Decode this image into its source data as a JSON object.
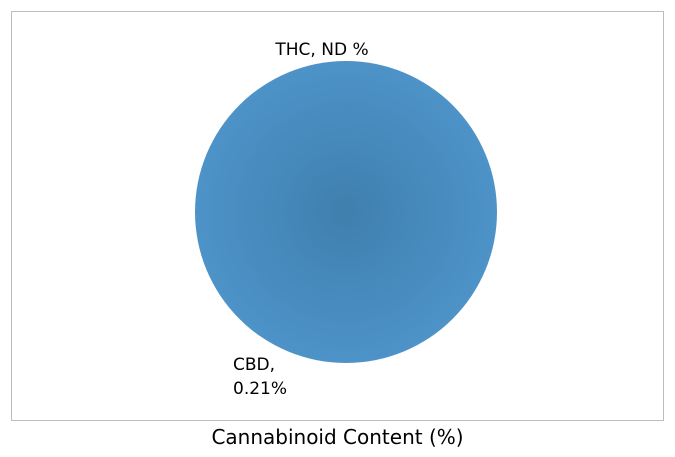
{
  "chart_data": {
    "type": "pie",
    "categories": [
      "THC",
      "CBD"
    ],
    "values": [
      0,
      0.21
    ],
    "value_unit": "%",
    "data_labels": [
      "THC, ND %",
      "CBD,\n0.21%"
    ],
    "colors": {
      "slice": "#4a8fc4",
      "slice_center": "#3f7fae",
      "frame_border": "#bdbdbd"
    },
    "title": "",
    "caption": "Cannabinoid Content (%)",
    "legend": "none"
  }
}
